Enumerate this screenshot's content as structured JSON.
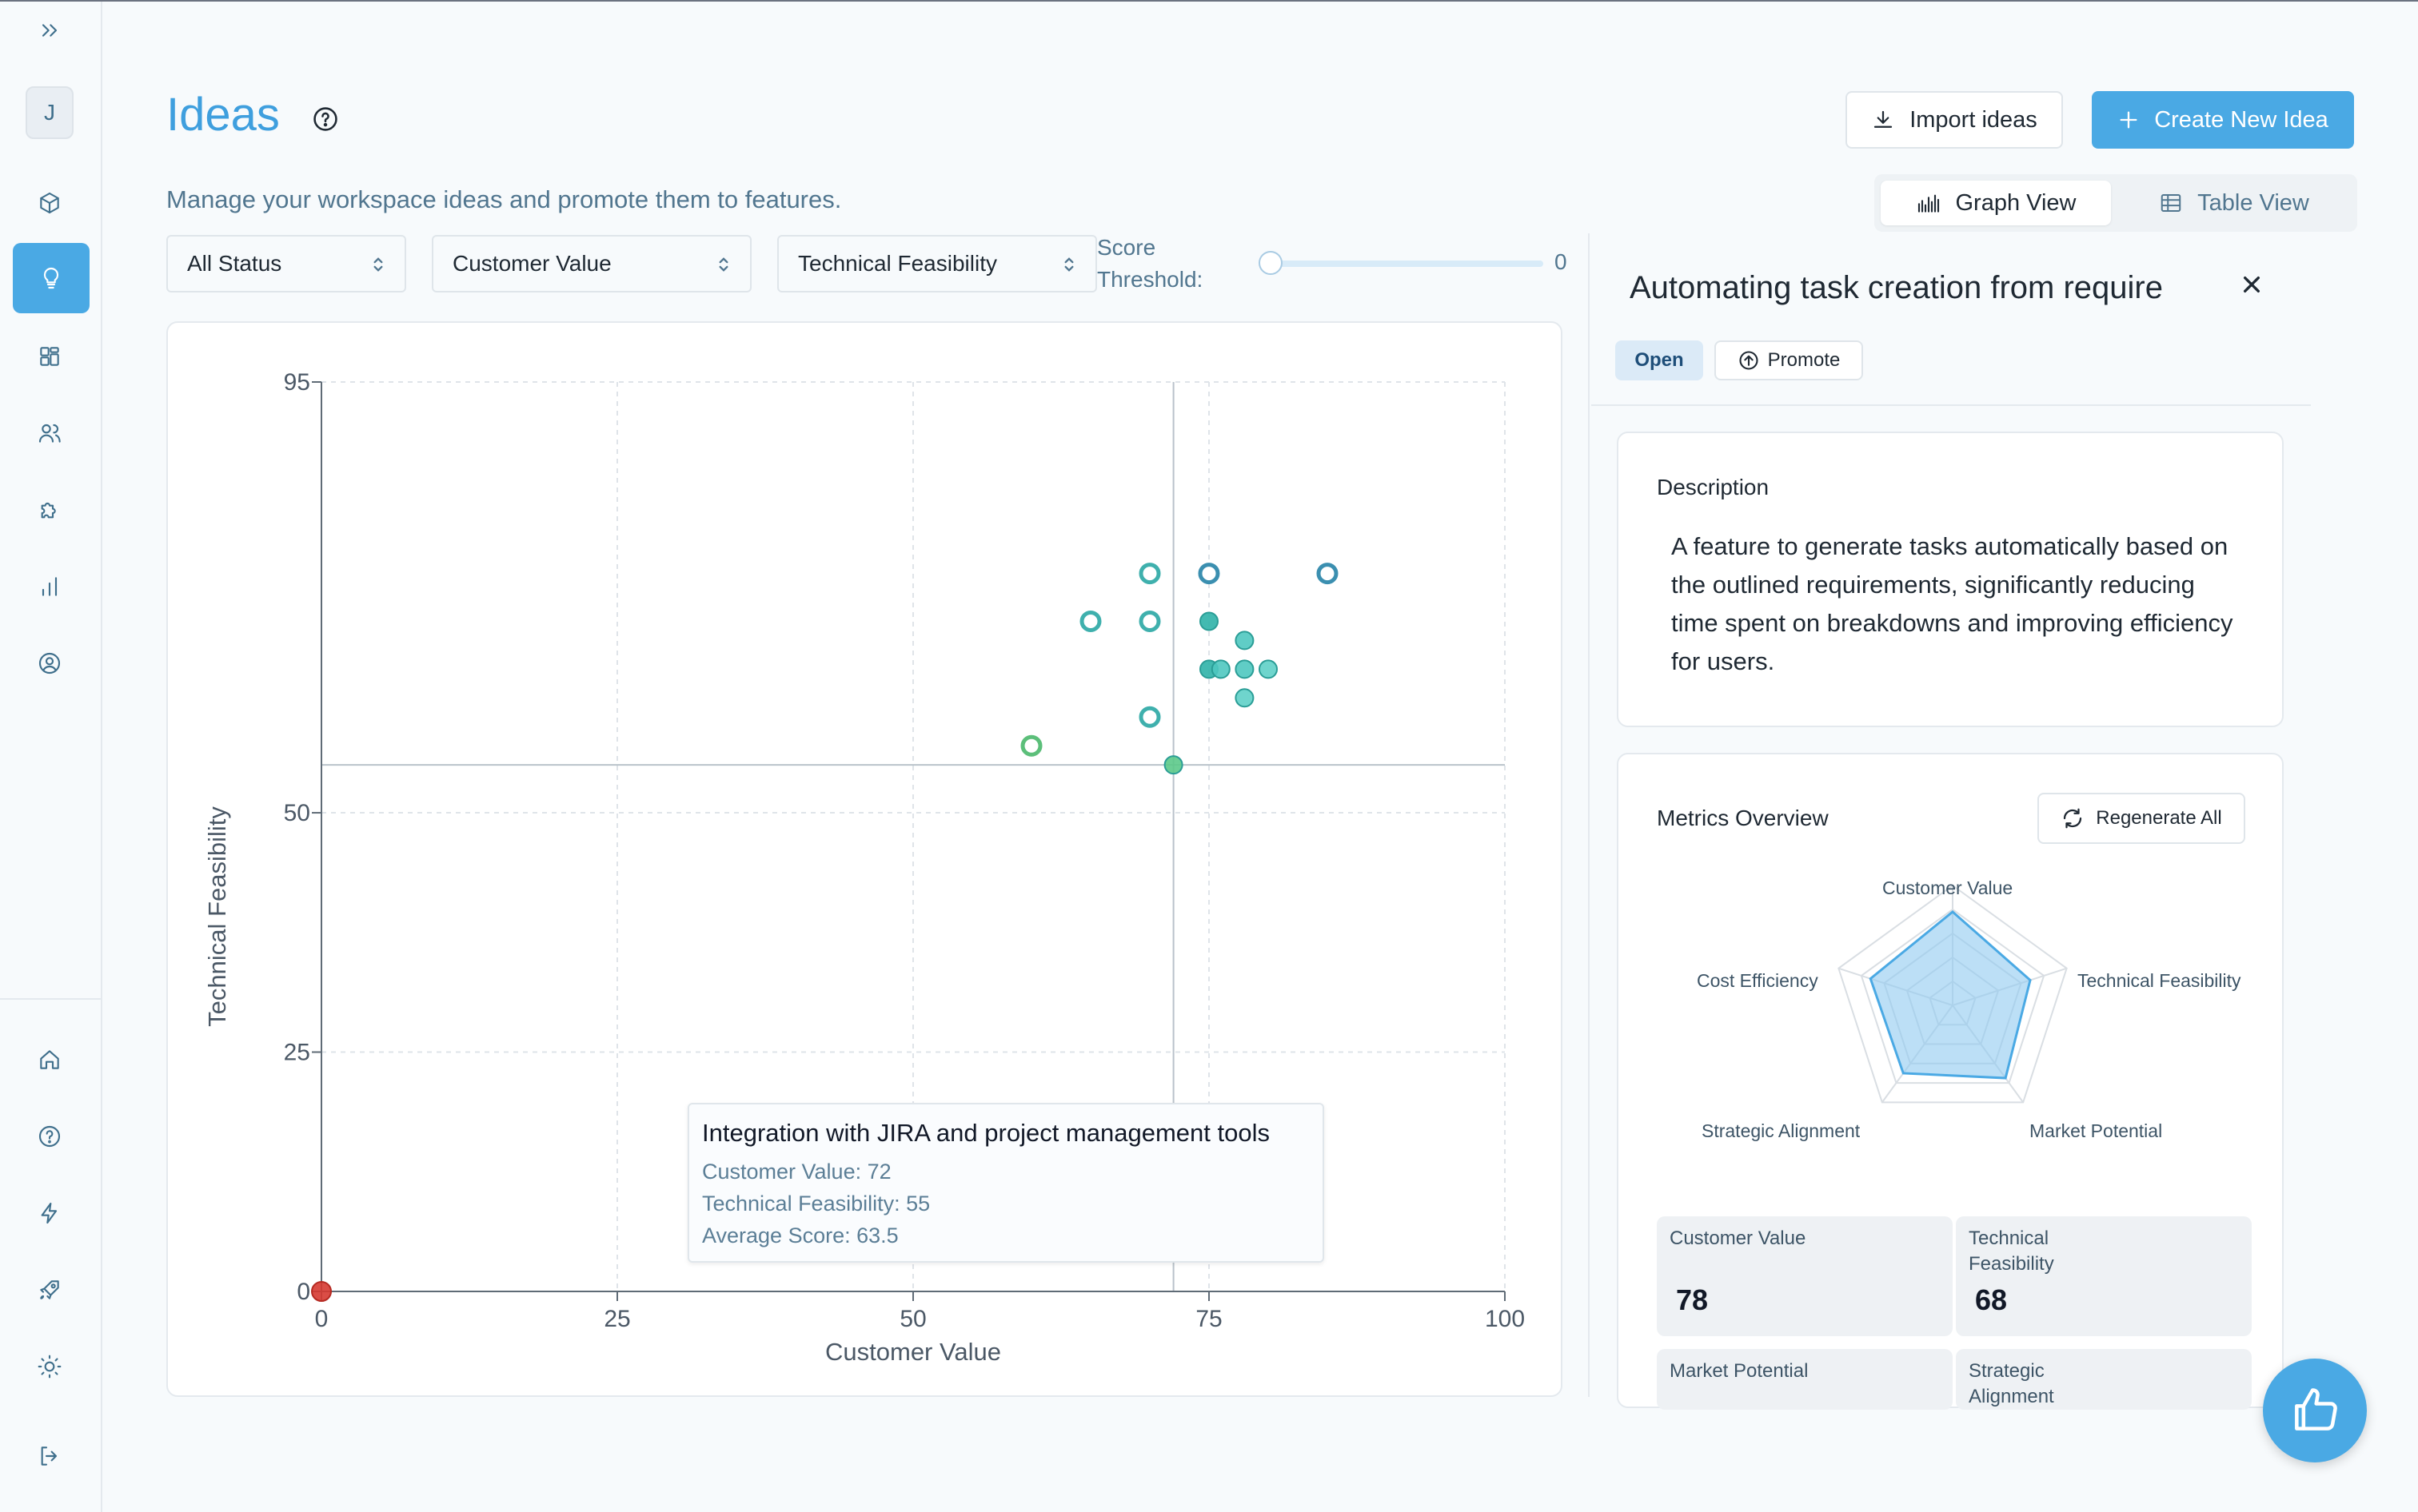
{
  "sidebar": {
    "avatar_initial": "J",
    "top_icons": [
      "expand-icon",
      "cube-icon",
      "lightbulb-icon",
      "dashboard-icon",
      "users-icon",
      "puzzle-icon",
      "bar-chart-icon",
      "user-circle-icon"
    ],
    "bottom_icons": [
      "home-icon",
      "help-icon",
      "bolt-icon",
      "rocket-icon",
      "sun-icon",
      "logout-icon"
    ],
    "active_color": "#4aa9e4"
  },
  "header": {
    "title": "Ideas",
    "subtitle": "Manage your workspace ideas and promote them to features.",
    "import_label": "Import ideas",
    "create_label": "Create New Idea"
  },
  "view_toggle": {
    "graph_label": "Graph View",
    "table_label": "Table View",
    "active": "graph"
  },
  "filters": {
    "status": "All Status",
    "x_metric": "Customer Value",
    "y_metric": "Technical Feasibility",
    "threshold_label": "Score Threshold:",
    "threshold_value": "0"
  },
  "tooltip": {
    "title": "Integration with JIRA and project management tools",
    "line1": "Customer Value: 72",
    "line2": "Technical Feasibility: 55",
    "line3": "Average Score: 63.5"
  },
  "chart_data": {
    "type": "scatter",
    "xlabel": "Customer Value",
    "ylabel": "Technical Feasibility",
    "xlim": [
      0,
      100
    ],
    "ylim": [
      0,
      95
    ],
    "x_ticks": [
      "0",
      "25",
      "50",
      "75",
      "100"
    ],
    "y_ticks": [
      "0",
      "25",
      "50",
      "95"
    ],
    "grid": true,
    "crosshair": {
      "x": 72,
      "y": 55
    },
    "points": [
      {
        "x": 70,
        "y": 75,
        "style": "ring",
        "color": "#3fb0ad"
      },
      {
        "x": 75,
        "y": 75,
        "style": "ring",
        "color": "#3b8fb0"
      },
      {
        "x": 85,
        "y": 75,
        "style": "ring",
        "color": "#3b8fb0"
      },
      {
        "x": 65,
        "y": 70,
        "style": "ring",
        "color": "#3fb0ad"
      },
      {
        "x": 70,
        "y": 70,
        "style": "ring",
        "color": "#3fb0ad"
      },
      {
        "x": 75,
        "y": 70,
        "style": "dot",
        "color": "#2fb3a9"
      },
      {
        "x": 78,
        "y": 68,
        "style": "dot",
        "color": "#4fc8c0"
      },
      {
        "x": 75,
        "y": 65,
        "style": "dot",
        "color": "#2fb3a9"
      },
      {
        "x": 76,
        "y": 65,
        "style": "dot",
        "color": "#4fc8c0"
      },
      {
        "x": 78,
        "y": 65,
        "style": "dot",
        "color": "#4fc8c0"
      },
      {
        "x": 80,
        "y": 65,
        "style": "dot",
        "color": "#5fd0c8"
      },
      {
        "x": 78,
        "y": 62,
        "style": "dot",
        "color": "#5fd0c8"
      },
      {
        "x": 70,
        "y": 60,
        "style": "ring",
        "color": "#3fb0ad"
      },
      {
        "x": 60,
        "y": 57,
        "style": "ring",
        "color": "#5cbf7a"
      },
      {
        "x": 72,
        "y": 55,
        "style": "dot",
        "color": "#5cc98a"
      },
      {
        "x": 0,
        "y": 0,
        "style": "dot",
        "color": "#d63a32"
      }
    ]
  },
  "panel": {
    "title": "Automating task creation from require",
    "status_badge": "Open",
    "promote_label": "Promote",
    "description_heading": "Description",
    "description": "A feature to generate tasks automatically based on the outlined requirements, significantly reducing time spent on breakdowns and improving efficiency for users.",
    "metrics_heading": "Metrics Overview",
    "regenerate_label": "Regenerate All",
    "radar": {
      "axes": [
        "Customer Value",
        "Technical Feasibility",
        "Market Potential",
        "Strategic Alignment",
        "Cost Efficiency"
      ],
      "values": [
        78,
        68,
        75,
        70,
        72
      ],
      "max": 100,
      "fill": "#8fc9f0",
      "stroke": "#4aa9e4"
    },
    "metric_cards": [
      {
        "label": "Customer Value",
        "value": "78"
      },
      {
        "label": "Technical Feasibility",
        "value": "68"
      },
      {
        "label": "Market Potential",
        "value": ""
      },
      {
        "label": "Strategic Alignment",
        "value": ""
      }
    ]
  },
  "fab": {
    "icon": "thumbs-up-icon"
  }
}
